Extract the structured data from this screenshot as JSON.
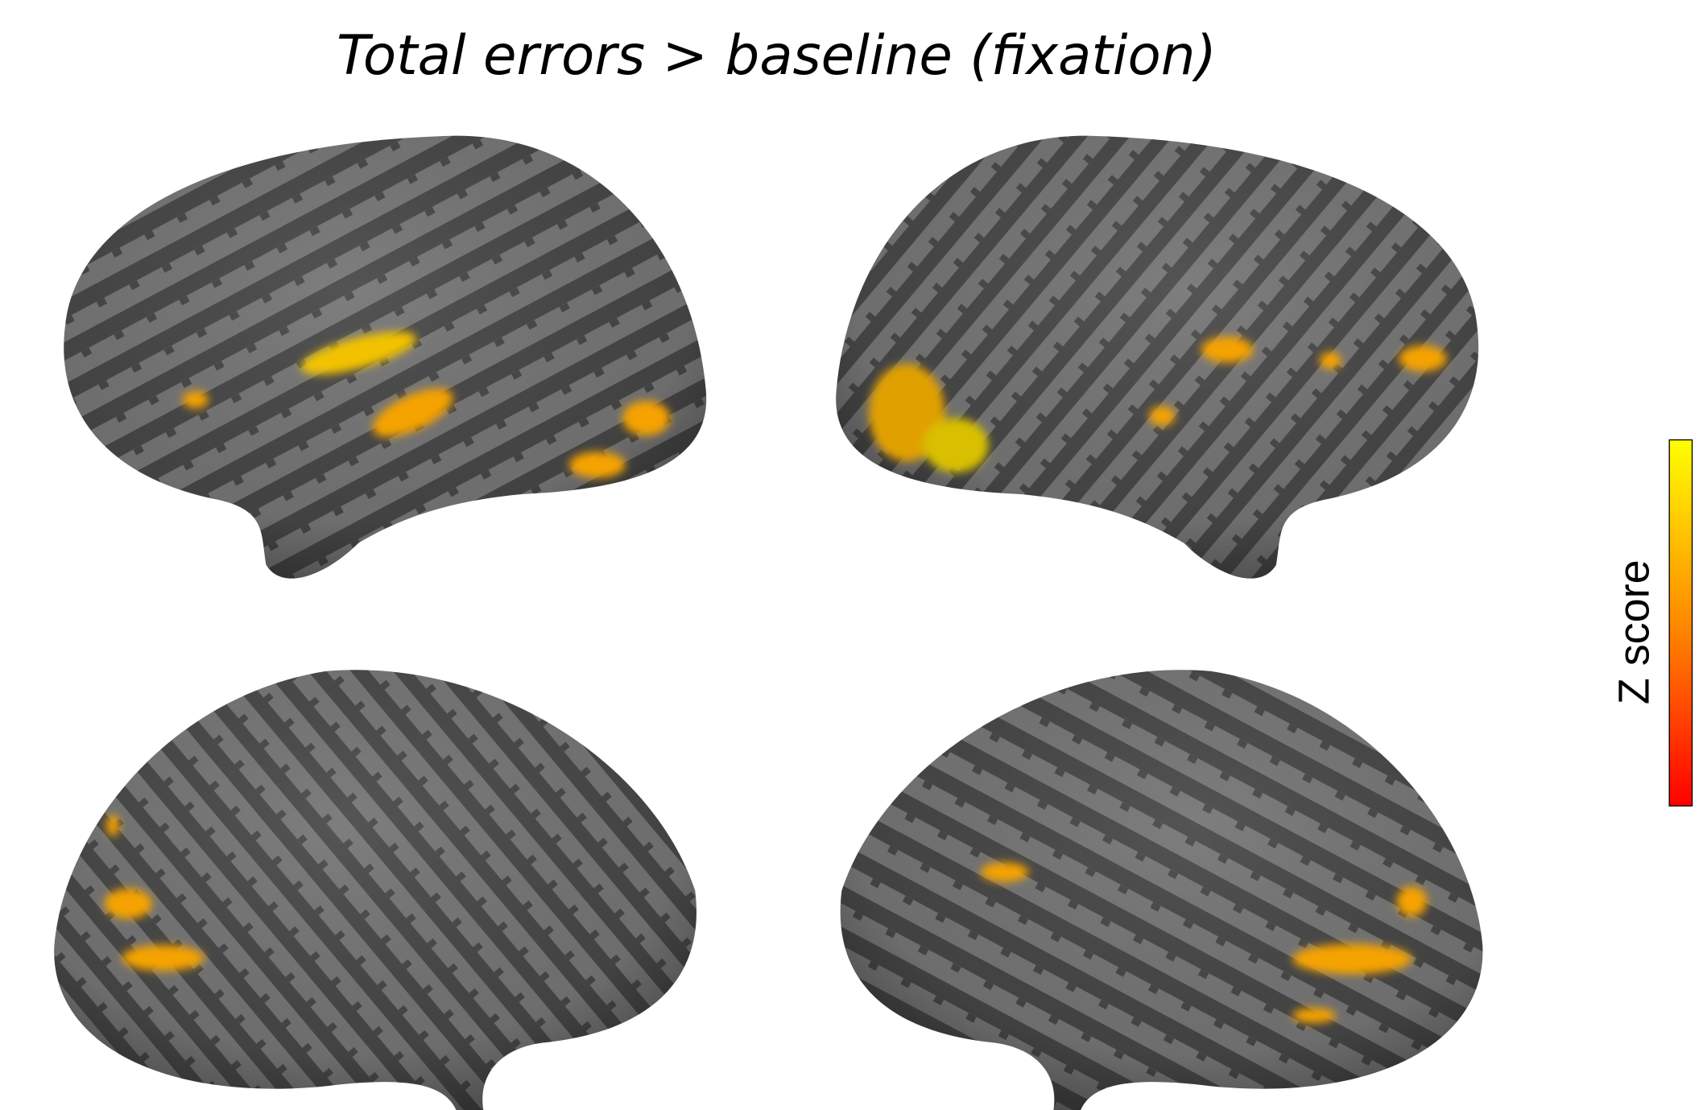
{
  "title": "Total errors > baseline (fixation)",
  "colorbar": {
    "label": "Z score"
  }
}
